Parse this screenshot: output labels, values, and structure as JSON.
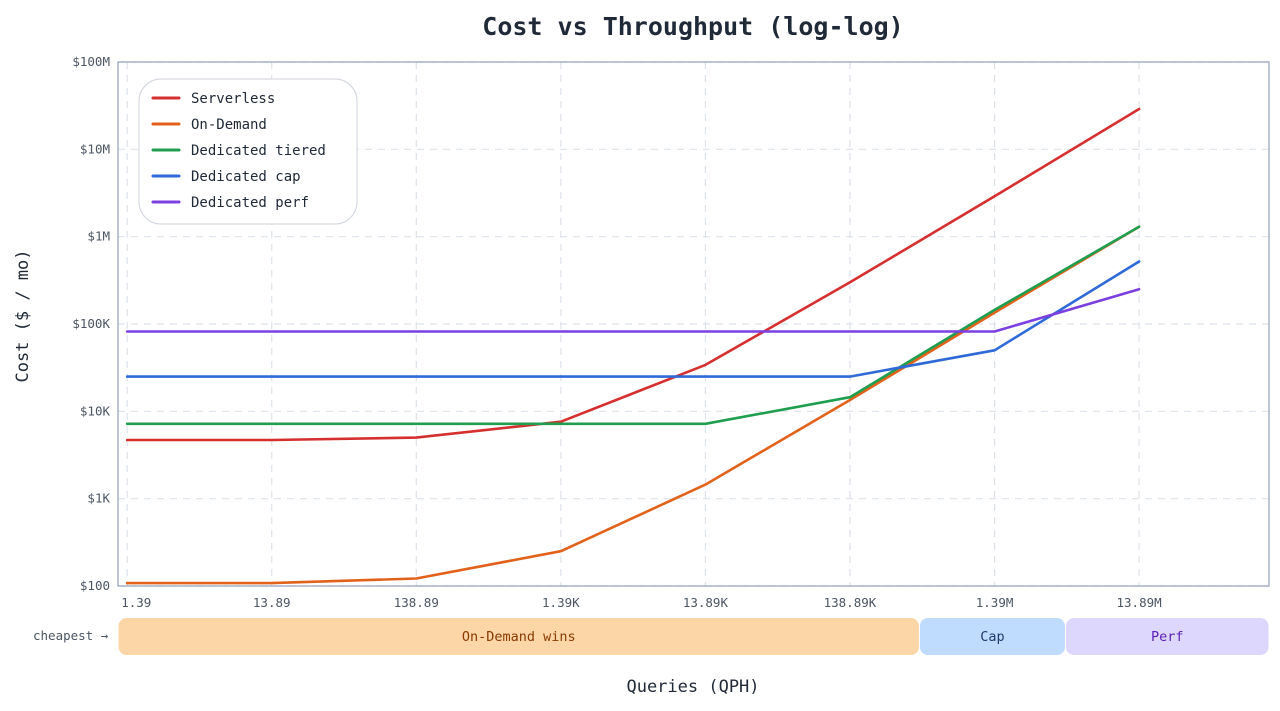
{
  "chart_data": {
    "type": "line",
    "title": "Cost vs Throughput (log-log)",
    "xlabel": "Queries (QPH)",
    "ylabel": "Cost ($ / mo)",
    "x_scale": "log",
    "y_scale": "log",
    "x": [
      1.39,
      13.89,
      138.89,
      1389,
      13890,
      138890,
      1390000,
      13890000
    ],
    "x_tick_labels": [
      "1.39",
      "13.89",
      "138.89",
      "1.39K",
      "13.89K",
      "138.89K",
      "1.39M",
      "13.89M"
    ],
    "y_tick_values": [
      100,
      1000,
      10000,
      100000,
      1000000,
      10000000,
      100000000
    ],
    "y_tick_labels": [
      "$100",
      "$1K",
      "$10K",
      "$100K",
      "$1M",
      "$10M",
      "$100M"
    ],
    "xlim": [
      1.2,
      110000000
    ],
    "ylim": [
      100,
      100000000
    ],
    "grid": true,
    "legend": "top-left",
    "series": [
      {
        "name": "Serverless",
        "color": "#d62f2f",
        "values": [
          4700,
          4700,
          5000,
          7600,
          34000,
          300000,
          2900000,
          29000000
        ]
      },
      {
        "name": "On-Demand",
        "color": "#e2621b",
        "values": [
          108,
          108,
          122,
          250,
          1450,
          13500,
          135000,
          1300000
        ]
      },
      {
        "name": "Dedicated tiered",
        "color": "#1f9e4f",
        "values": [
          7200,
          7200,
          7200,
          7200,
          7200,
          14500,
          145000,
          1300000
        ]
      },
      {
        "name": "Dedicated cap",
        "color": "#2f6ad8",
        "values": [
          25000,
          25000,
          25000,
          25000,
          25000,
          25000,
          50000,
          520000
        ]
      },
      {
        "name": "Dedicated perf",
        "color": "#7c3fe0",
        "values": [
          82000,
          82000,
          82000,
          82000,
          82000,
          82000,
          82000,
          250000
        ]
      }
    ],
    "cheapest_label": "cheapest →",
    "regions": [
      {
        "label": "On-Demand wins",
        "x_start": 1.2,
        "x_end": 420000,
        "fill": "#fdd6a8",
        "text_color": "#8a3a00"
      },
      {
        "label": "Cap",
        "x_start": 420000,
        "x_end": 4300000,
        "fill": "#bfdbfd",
        "text_color": "#1e3a6e"
      },
      {
        "label": "Perf",
        "x_start": 4300000,
        "x_end": 110000000,
        "fill": "#ddd6fd",
        "text_color": "#5b21b6"
      }
    ]
  }
}
